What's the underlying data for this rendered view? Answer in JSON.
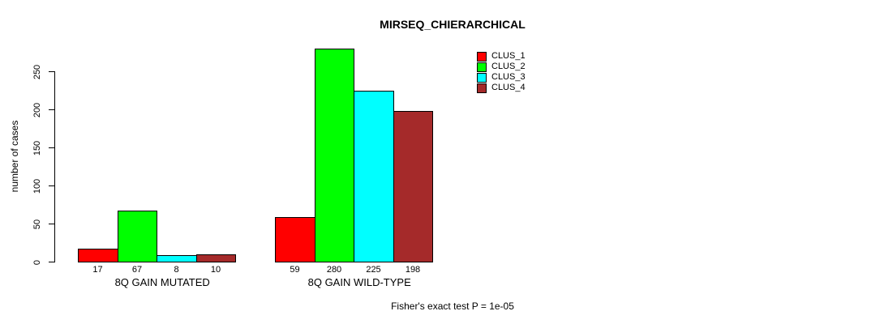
{
  "chart_data": {
    "type": "bar",
    "title": "MIRSEQ_CHIERARCHICAL",
    "ylabel": "number of cases",
    "xlabel": "",
    "categories": [
      "8Q GAIN MUTATED",
      "8Q GAIN WILD-TYPE"
    ],
    "series": [
      {
        "name": "CLUS_1",
        "color": "#ff0000",
        "values": [
          17,
          59
        ]
      },
      {
        "name": "CLUS_2",
        "color": "#00ff00",
        "values": [
          67,
          280
        ]
      },
      {
        "name": "CLUS_3",
        "color": "#00ffff",
        "values": [
          8,
          225
        ]
      },
      {
        "name": "CLUS_4",
        "color": "#a52a2a",
        "values": [
          10,
          198
        ]
      }
    ],
    "yticks": [
      0,
      50,
      100,
      150,
      200,
      250
    ],
    "ylim": [
      0,
      285
    ],
    "grid": false,
    "legend_position": "top-right-inside",
    "bar_value_labels": true,
    "footnote": "Fisher's exact test P = 1e-05"
  },
  "colors": {
    "background": "#ffffff",
    "axis": "#000000",
    "bar_border": "#000000",
    "text": "#000000"
  }
}
